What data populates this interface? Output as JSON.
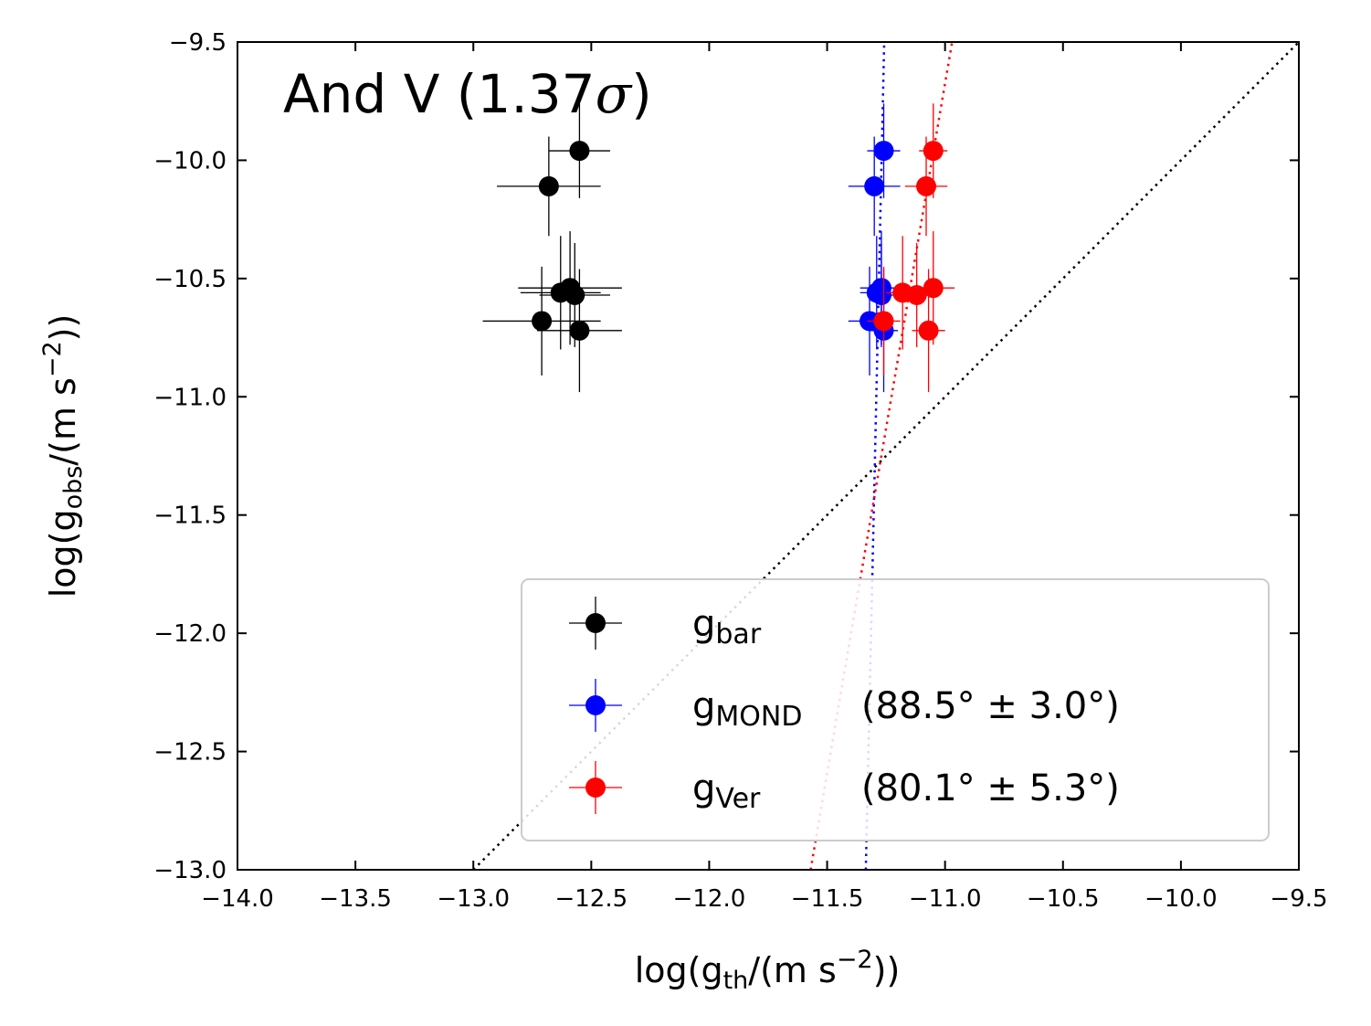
{
  "chart_data": {
    "type": "scatter",
    "title": {
      "main": "And V (1.37",
      "sigma": "σ",
      "close": ")"
    },
    "xlabel": {
      "pre": "log(g",
      "sub": "th",
      "mid": "/(m s",
      "sup": "−2",
      "post": "))"
    },
    "ylabel": {
      "pre": "log(g",
      "sub": "obs",
      "mid": "/(m s",
      "sup": "−2",
      "post": "))"
    },
    "xlim": [
      -14.0,
      -9.5
    ],
    "ylim": [
      -13.0,
      -9.5
    ],
    "xticks": [
      -14.0,
      -13.5,
      -13.0,
      -12.5,
      -12.0,
      -11.5,
      -11.0,
      -10.5,
      -10.0,
      -9.5
    ],
    "yticks": [
      -13.0,
      -12.5,
      -12.0,
      -11.5,
      -11.0,
      -10.5,
      -10.0,
      -9.5
    ],
    "xtick_labels": [
      "−14.0",
      "−13.5",
      "−13.0",
      "−12.5",
      "−12.0",
      "−11.5",
      "−11.0",
      "−10.5",
      "−10.0",
      "−9.5"
    ],
    "ytick_labels": [
      "−13.0",
      "−12.5",
      "−12.0",
      "−11.5",
      "−11.0",
      "−10.5",
      "−10.0",
      "−9.5"
    ],
    "series": [
      {
        "name": "g_bar",
        "legend_main": "g",
        "legend_sub": "bar",
        "legend_extra": "",
        "color": "#000000",
        "points": [
          {
            "x": -12.55,
            "y": -9.96,
            "xerr": 0.13,
            "yerr": 0.2
          },
          {
            "x": -12.68,
            "y": -10.11,
            "xerr": 0.22,
            "yerr": 0.21
          },
          {
            "x": -12.59,
            "y": -10.54,
            "xerr": 0.22,
            "yerr": 0.24
          },
          {
            "x": -12.63,
            "y": -10.56,
            "xerr": 0.17,
            "yerr": 0.24
          },
          {
            "x": -12.57,
            "y": -10.57,
            "xerr": 0.15,
            "yerr": 0.22
          },
          {
            "x": -12.71,
            "y": -10.68,
            "xerr": 0.25,
            "yerr": 0.23
          },
          {
            "x": -12.55,
            "y": -10.72,
            "xerr": 0.18,
            "yerr": 0.26
          }
        ]
      },
      {
        "name": "g_MOND",
        "legend_main": "g",
        "legend_sub": "MOND",
        "legend_extra": "(88.5° ± 3.0°)",
        "color": "#0000ff",
        "points": [
          {
            "x": -11.26,
            "y": -9.96,
            "xerr": 0.07,
            "yerr": 0.2
          },
          {
            "x": -11.3,
            "y": -10.11,
            "xerr": 0.11,
            "yerr": 0.21
          },
          {
            "x": -11.27,
            "y": -10.54,
            "xerr": 0.09,
            "yerr": 0.24
          },
          {
            "x": -11.29,
            "y": -10.56,
            "xerr": 0.07,
            "yerr": 0.24
          },
          {
            "x": -11.27,
            "y": -10.57,
            "xerr": 0.06,
            "yerr": 0.22
          },
          {
            "x": -11.32,
            "y": -10.68,
            "xerr": 0.09,
            "yerr": 0.23
          },
          {
            "x": -11.26,
            "y": -10.72,
            "xerr": 0.06,
            "yerr": 0.26
          }
        ]
      },
      {
        "name": "g_Ver",
        "legend_main": "g",
        "legend_sub": "Ver",
        "legend_extra": "(80.1° ± 5.3°)",
        "color": "#ff0000",
        "points": [
          {
            "x": -11.05,
            "y": -9.96,
            "xerr": 0.06,
            "yerr": 0.2
          },
          {
            "x": -11.08,
            "y": -10.11,
            "xerr": 0.09,
            "yerr": 0.21
          },
          {
            "x": -11.05,
            "y": -10.54,
            "xerr": 0.09,
            "yerr": 0.24
          },
          {
            "x": -11.18,
            "y": -10.56,
            "xerr": 0.07,
            "yerr": 0.24
          },
          {
            "x": -11.12,
            "y": -10.57,
            "xerr": 0.06,
            "yerr": 0.22
          },
          {
            "x": -11.26,
            "y": -10.68,
            "xerr": 0.07,
            "yerr": 0.23
          },
          {
            "x": -11.07,
            "y": -10.72,
            "xerr": 0.07,
            "yerr": 0.26
          }
        ]
      }
    ],
    "lines": [
      {
        "name": "one-to-one",
        "color": "#000000",
        "x": [
          -13.0,
          -9.5
        ],
        "y": [
          -13.0,
          -9.5
        ]
      },
      {
        "name": "mond-fit",
        "color": "#0000ff",
        "x": [
          -11.336,
          -11.258
        ],
        "y": [
          -13.0,
          -9.5
        ]
      },
      {
        "name": "ver-fit",
        "color": "#ff0000",
        "x": [
          -11.57,
          -10.97
        ],
        "y": [
          -13.0,
          -9.5
        ]
      }
    ],
    "legend_position": "lower-right"
  }
}
